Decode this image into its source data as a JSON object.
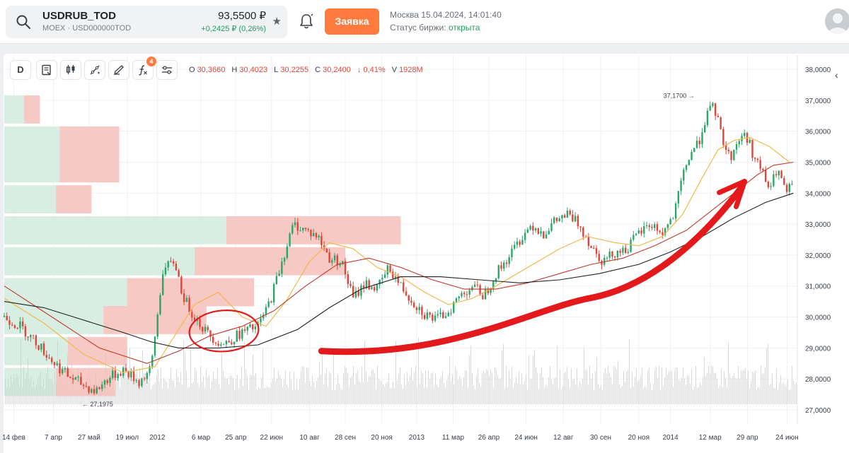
{
  "ticker": {
    "symbol": "USDRUB_TOD",
    "exchange": "MOEX",
    "separator": "·",
    "code": "USD000000TOD",
    "price": "93,5500 ₽",
    "change": "+0,2425 ₽ (0,26%)"
  },
  "order_button": {
    "label": "Заявка"
  },
  "market": {
    "datetime": "Москва 15.04.2024, 14:01:40",
    "status_label": "Статус биржи:",
    "status_value": "открыта"
  },
  "toolbar": {
    "interval": "D",
    "indicator_badge": "4"
  },
  "ohlc": {
    "o_label": "O",
    "o": "30,3660",
    "h_label": "H",
    "h": "30,4023",
    "l_label": "L",
    "l": "30,2255",
    "c_label": "C",
    "c": "30,2400",
    "change": "↓ 0,41%",
    "v_label": "V",
    "v": "1928M"
  },
  "colors": {
    "accent": "#ff7a3d",
    "up": "#1f9e63",
    "down": "#e0453a",
    "profile_buy": "#d9eee2",
    "profile_sell": "#f7c9c5",
    "volume": "#c5c9f0",
    "annotation": "#e3191c"
  },
  "chart_data": {
    "type": "candlestick",
    "ylim": [
      26.5,
      38.3
    ],
    "y_ticks": [
      "38,0000",
      "37,0000",
      "36,0000",
      "35,0000",
      "34,0000",
      "33,0000",
      "32,0000",
      "31,0000",
      "30,0000",
      "29,0000",
      "28,0000",
      "27,0000"
    ],
    "y_tick_values": [
      38,
      37,
      36,
      35,
      34,
      33,
      32,
      31,
      30,
      29,
      28,
      27
    ],
    "x_ticks": [
      "14 фев",
      "7 апр",
      "27 май",
      "19 июл",
      "2012",
      "6 мар",
      "25 апр",
      "22 июн",
      "10 авг",
      "28 сен",
      "20 ноя",
      "2013",
      "11 мар",
      "26 апр",
      "24 июн",
      "12 авг",
      "30 сен",
      "20 ноя",
      "2014",
      "12 мар",
      "29 апр",
      "24 июн"
    ],
    "x_tick_positions": [
      0.012,
      0.062,
      0.107,
      0.155,
      0.193,
      0.248,
      0.292,
      0.337,
      0.385,
      0.43,
      0.476,
      0.52,
      0.566,
      0.611,
      0.658,
      0.705,
      0.752,
      0.8,
      0.84,
      0.89,
      0.937,
      0.987
    ],
    "annotations": {
      "max_label": "37,1700 →",
      "min_label": "← 27,1975"
    },
    "close_trace": [
      [
        0,
        30.0
      ],
      [
        0.02,
        29.7
      ],
      [
        0.04,
        29.2
      ],
      [
        0.06,
        28.6
      ],
      [
        0.08,
        28.1
      ],
      [
        0.1,
        27.8
      ],
      [
        0.115,
        27.6
      ],
      [
        0.13,
        28.0
      ],
      [
        0.15,
        28.3
      ],
      [
        0.17,
        27.9
      ],
      [
        0.185,
        28.3
      ],
      [
        0.2,
        31.5
      ],
      [
        0.215,
        31.8
      ],
      [
        0.225,
        30.7
      ],
      [
        0.235,
        30.2
      ],
      [
        0.255,
        29.5
      ],
      [
        0.275,
        29.1
      ],
      [
        0.3,
        29.5
      ],
      [
        0.32,
        29.7
      ],
      [
        0.335,
        30.5
      ],
      [
        0.35,
        31.8
      ],
      [
        0.365,
        33.0
      ],
      [
        0.38,
        32.8
      ],
      [
        0.395,
        32.6
      ],
      [
        0.41,
        31.9
      ],
      [
        0.425,
        31.8
      ],
      [
        0.44,
        30.6
      ],
      [
        0.455,
        31.1
      ],
      [
        0.47,
        30.9
      ],
      [
        0.485,
        31.6
      ],
      [
        0.5,
        31.0
      ],
      [
        0.515,
        30.5
      ],
      [
        0.53,
        30.1
      ],
      [
        0.545,
        29.9
      ],
      [
        0.56,
        30.2
      ],
      [
        0.575,
        30.7
      ],
      [
        0.59,
        31.0
      ],
      [
        0.605,
        30.7
      ],
      [
        0.62,
        31.4
      ],
      [
        0.635,
        31.9
      ],
      [
        0.65,
        32.5
      ],
      [
        0.665,
        33.0
      ],
      [
        0.68,
        32.7
      ],
      [
        0.695,
        33.1
      ],
      [
        0.71,
        33.3
      ],
      [
        0.725,
        33.0
      ],
      [
        0.74,
        32.3
      ],
      [
        0.755,
        31.8
      ],
      [
        0.77,
        32.1
      ],
      [
        0.785,
        32.2
      ],
      [
        0.8,
        32.7
      ],
      [
        0.815,
        33.0
      ],
      [
        0.83,
        32.7
      ],
      [
        0.845,
        33.3
      ],
      [
        0.855,
        34.5
      ],
      [
        0.865,
        35.3
      ],
      [
        0.875,
        35.6
      ],
      [
        0.885,
        36.5
      ],
      [
        0.895,
        36.8
      ],
      [
        0.905,
        35.8
      ],
      [
        0.915,
        35.1
      ],
      [
        0.925,
        35.7
      ],
      [
        0.935,
        35.9
      ],
      [
        0.945,
        35.2
      ],
      [
        0.955,
        34.7
      ],
      [
        0.965,
        34.1
      ],
      [
        0.975,
        34.8
      ],
      [
        0.985,
        34.0
      ],
      [
        0.993,
        34.2
      ]
    ],
    "ma_short": [
      [
        0,
        30.6
      ],
      [
        0.05,
        29.8
      ],
      [
        0.1,
        28.8
      ],
      [
        0.15,
        28.2
      ],
      [
        0.19,
        28.4
      ],
      [
        0.215,
        29.4
      ],
      [
        0.24,
        30.4
      ],
      [
        0.27,
        30.8
      ],
      [
        0.3,
        30.0
      ],
      [
        0.33,
        29.7
      ],
      [
        0.355,
        30.5
      ],
      [
        0.385,
        31.8
      ],
      [
        0.41,
        32.4
      ],
      [
        0.44,
        32.2
      ],
      [
        0.47,
        31.6
      ],
      [
        0.5,
        31.3
      ],
      [
        0.53,
        30.8
      ],
      [
        0.56,
        30.4
      ],
      [
        0.59,
        30.6
      ],
      [
        0.62,
        31.0
      ],
      [
        0.66,
        31.6
      ],
      [
        0.7,
        32.2
      ],
      [
        0.735,
        32.6
      ],
      [
        0.77,
        32.4
      ],
      [
        0.8,
        32.3
      ],
      [
        0.83,
        32.6
      ],
      [
        0.855,
        33.3
      ],
      [
        0.88,
        34.5
      ],
      [
        0.9,
        35.4
      ],
      [
        0.92,
        35.7
      ],
      [
        0.94,
        35.8
      ],
      [
        0.965,
        35.5
      ],
      [
        0.99,
        35.0
      ]
    ],
    "ma_mid": [
      [
        0,
        31.0
      ],
      [
        0.06,
        30.0
      ],
      [
        0.12,
        29.0
      ],
      [
        0.18,
        28.5
      ],
      [
        0.22,
        28.9
      ],
      [
        0.26,
        29.4
      ],
      [
        0.3,
        29.7
      ],
      [
        0.34,
        30.2
      ],
      [
        0.38,
        31.0
      ],
      [
        0.42,
        31.7
      ],
      [
        0.46,
        31.9
      ],
      [
        0.5,
        31.6
      ],
      [
        0.54,
        31.2
      ],
      [
        0.58,
        30.9
      ],
      [
        0.62,
        30.9
      ],
      [
        0.66,
        31.1
      ],
      [
        0.7,
        31.4
      ],
      [
        0.74,
        31.7
      ],
      [
        0.78,
        31.9
      ],
      [
        0.82,
        32.3
      ],
      [
        0.86,
        32.8
      ],
      [
        0.89,
        33.4
      ],
      [
        0.92,
        34.0
      ],
      [
        0.95,
        34.6
      ],
      [
        0.97,
        34.9
      ],
      [
        0.995,
        35.0
      ]
    ],
    "ma_long": [
      [
        0,
        30.5
      ],
      [
        0.05,
        30.3
      ],
      [
        0.1,
        29.9
      ],
      [
        0.15,
        29.5
      ],
      [
        0.185,
        29.2
      ],
      [
        0.22,
        29.0
      ],
      [
        0.27,
        29.0
      ],
      [
        0.32,
        29.1
      ],
      [
        0.37,
        29.6
      ],
      [
        0.41,
        30.3
      ],
      [
        0.45,
        30.9
      ],
      [
        0.5,
        31.3
      ],
      [
        0.55,
        31.3
      ],
      [
        0.6,
        31.2
      ],
      [
        0.65,
        31.1
      ],
      [
        0.7,
        31.2
      ],
      [
        0.75,
        31.4
      ],
      [
        0.8,
        31.7
      ],
      [
        0.84,
        32.1
      ],
      [
        0.88,
        32.6
      ],
      [
        0.92,
        33.2
      ],
      [
        0.96,
        33.7
      ],
      [
        0.995,
        34.0
      ]
    ],
    "volume_profile": [
      {
        "price": 36.7,
        "buy": 0.025,
        "sell": 0.045
      },
      {
        "price": 35.7,
        "buy": 0.07,
        "sell": 0.145
      },
      {
        "price": 34.8,
        "buy": 0.07,
        "sell": 0.145
      },
      {
        "price": 33.8,
        "buy": 0.065,
        "sell": 0.11
      },
      {
        "price": 32.8,
        "buy": 0.28,
        "sell": 0.5
      },
      {
        "price": 31.8,
        "buy": 0.24,
        "sell": 0.43
      },
      {
        "price": 30.8,
        "buy": 0.155,
        "sell": 0.315
      },
      {
        "price": 29.9,
        "buy": 0.125,
        "sell": 0.255
      },
      {
        "price": 28.9,
        "buy": 0.08,
        "sell": 0.155
      },
      {
        "price": 27.9,
        "buy": 0.065,
        "sell": 0.14
      }
    ],
    "hand_drawn": {
      "circle_center": [
        0.277,
        29.55
      ],
      "arrow_from": [
        0.4,
        28.9
      ],
      "arrow_to": [
        0.93,
        34.2
      ]
    }
  }
}
